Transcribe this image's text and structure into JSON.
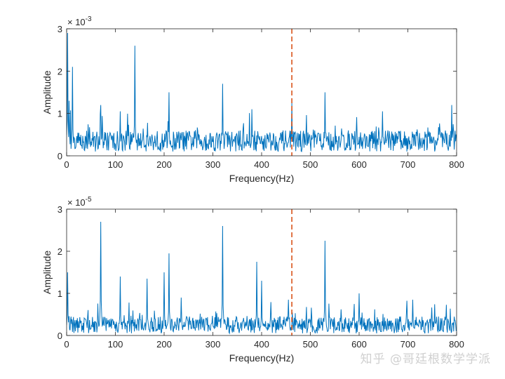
{
  "watermark": "知乎 @哥廷根数学学派",
  "chart_data": [
    {
      "type": "line",
      "xlabel": "Frequency(Hz)",
      "ylabel": "Amplitude",
      "xlim": [
        0,
        800
      ],
      "ylim": [
        0,
        3
      ],
      "x_ticks": [
        0,
        100,
        200,
        300,
        400,
        500,
        600,
        700,
        800
      ],
      "y_ticks": [
        0,
        1,
        2,
        3
      ],
      "y_exponent": "-3",
      "grid": false,
      "series_color": "#0072BD",
      "marker_color": "#D95319",
      "marker_x": 462,
      "baseline": 0.35,
      "noise": 0.25,
      "peaks": [
        {
          "x": 2,
          "y": 2.9
        },
        {
          "x": 5,
          "y": 1.3
        },
        {
          "x": 12,
          "y": 2.1
        },
        {
          "x": 70,
          "y": 1.2
        },
        {
          "x": 110,
          "y": 1.05
        },
        {
          "x": 140,
          "y": 2.6
        },
        {
          "x": 210,
          "y": 1.5
        },
        {
          "x": 320,
          "y": 1.7
        },
        {
          "x": 380,
          "y": 1.1
        },
        {
          "x": 462,
          "y": 1.25
        },
        {
          "x": 530,
          "y": 1.5
        },
        {
          "x": 648,
          "y": 1.05
        },
        {
          "x": 790,
          "y": 1.2
        }
      ]
    },
    {
      "type": "line",
      "xlabel": "Frequency(Hz)",
      "ylabel": "Amplitude",
      "xlim": [
        0,
        800
      ],
      "ylim": [
        0,
        3
      ],
      "x_ticks": [
        0,
        100,
        200,
        300,
        400,
        500,
        600,
        700,
        800
      ],
      "y_ticks": [
        0,
        1,
        2,
        3
      ],
      "y_exponent": "-5",
      "grid": false,
      "series_color": "#0072BD",
      "marker_color": "#D95319",
      "marker_x": 462,
      "baseline": 0.25,
      "noise": 0.2,
      "peaks": [
        {
          "x": 2,
          "y": 1.5
        },
        {
          "x": 70,
          "y": 2.7
        },
        {
          "x": 110,
          "y": 1.4
        },
        {
          "x": 165,
          "y": 1.35
        },
        {
          "x": 200,
          "y": 1.5
        },
        {
          "x": 210,
          "y": 1.95
        },
        {
          "x": 235,
          "y": 0.9
        },
        {
          "x": 320,
          "y": 2.6
        },
        {
          "x": 390,
          "y": 1.75
        },
        {
          "x": 400,
          "y": 1.3
        },
        {
          "x": 455,
          "y": 0.85
        },
        {
          "x": 530,
          "y": 2.25
        },
        {
          "x": 600,
          "y": 1.0
        },
        {
          "x": 710,
          "y": 0.85
        }
      ]
    }
  ]
}
